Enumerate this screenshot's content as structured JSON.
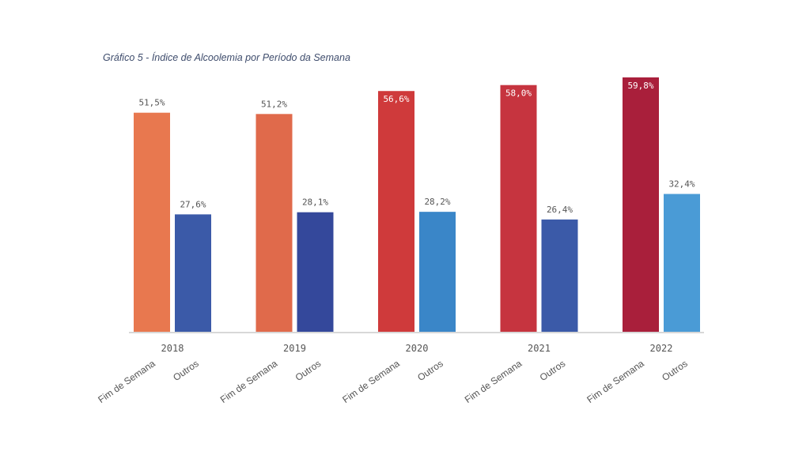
{
  "chart_data": {
    "type": "grouped-bar",
    "title": "Gráfico 5 - Índice de Alcoolemia por Período da Semana",
    "categories": [
      "2018",
      "2019",
      "2020",
      "2021",
      "2022"
    ],
    "series": [
      {
        "name": "Fim de Semana",
        "values": [
          51.5,
          51.2,
          56.6,
          58.0,
          59.8
        ],
        "value_labels": [
          "51,5%",
          "51,2%",
          "56,6%",
          "58,0%",
          "59,8%"
        ],
        "colors": [
          "#e8784f",
          "#e06a4b",
          "#cf3a3b",
          "#c6343f",
          "#a91f3b"
        ],
        "label_position": [
          "outside",
          "outside",
          "inside",
          "inside",
          "inside"
        ]
      },
      {
        "name": "Outros",
        "values": [
          27.6,
          28.1,
          28.2,
          26.4,
          32.4
        ],
        "value_labels": [
          "27,6%",
          "28,1%",
          "28,2%",
          "26,4%",
          "32,4%"
        ],
        "colors": [
          "#3b5aa8",
          "#34489b",
          "#3a86c8",
          "#3b5aa8",
          "#4a9bd6"
        ],
        "label_position": [
          "outside",
          "outside",
          "outside",
          "outside",
          "outside"
        ]
      }
    ]
  }
}
